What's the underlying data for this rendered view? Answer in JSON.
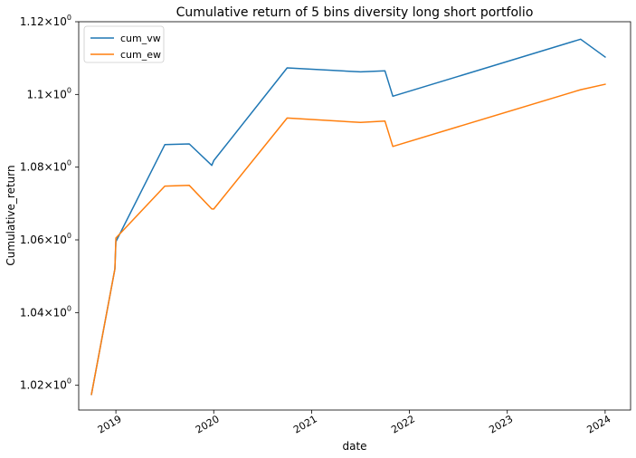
{
  "chart_data": {
    "type": "line",
    "title": "Cumulative return of 5 bins diversity long short portfolio",
    "xlabel": "date",
    "ylabel": "Cumulative_return",
    "xlim": [
      2018.62,
      2024.26
    ],
    "ylim": [
      1.0132,
      1.12
    ],
    "x_ticks": [
      {
        "value": 2019.0,
        "label": "2019"
      },
      {
        "value": 2020.0,
        "label": "2020"
      },
      {
        "value": 2021.0,
        "label": "2021"
      },
      {
        "value": 2022.0,
        "label": "2022"
      },
      {
        "value": 2023.0,
        "label": "2023"
      },
      {
        "value": 2024.0,
        "label": "2024"
      }
    ],
    "y_ticks": [
      {
        "value": 1.02,
        "mantissa": "1.02",
        "exp": "0"
      },
      {
        "value": 1.04,
        "mantissa": "1.04",
        "exp": "0"
      },
      {
        "value": 1.06,
        "mantissa": "1.06",
        "exp": "0"
      },
      {
        "value": 1.08,
        "mantissa": "1.08",
        "exp": "0"
      },
      {
        "value": 1.1,
        "mantissa": "1.1",
        "exp": "0"
      },
      {
        "value": 1.12,
        "mantissa": "1.12",
        "exp": "0"
      }
    ],
    "legend_position": "top-left",
    "grid": false,
    "series": [
      {
        "name": "cum_vw",
        "color": "#1f77b4",
        "x": [
          2018.75,
          2018.99,
          2019.0,
          2019.5,
          2019.75,
          2019.98,
          2020.0,
          2020.75,
          2021.5,
          2021.75,
          2021.83,
          2023.75,
          2024.0
        ],
        "y": [
          1.0175,
          1.052,
          1.0595,
          1.0862,
          1.0864,
          1.0805,
          1.0818,
          1.1073,
          1.1062,
          1.1065,
          1.0995,
          1.1152,
          1.1103
        ]
      },
      {
        "name": "cum_ew",
        "color": "#ff7f0e",
        "x": [
          2018.75,
          2018.99,
          2019.0,
          2019.5,
          2019.75,
          2019.98,
          2020.0,
          2020.75,
          2021.5,
          2021.75,
          2021.83,
          2023.75,
          2024.0
        ],
        "y": [
          1.0175,
          1.052,
          1.0605,
          1.0748,
          1.075,
          1.0685,
          1.0685,
          1.0935,
          1.0923,
          1.0927,
          1.0857,
          1.1013,
          1.1028
        ]
      }
    ]
  }
}
